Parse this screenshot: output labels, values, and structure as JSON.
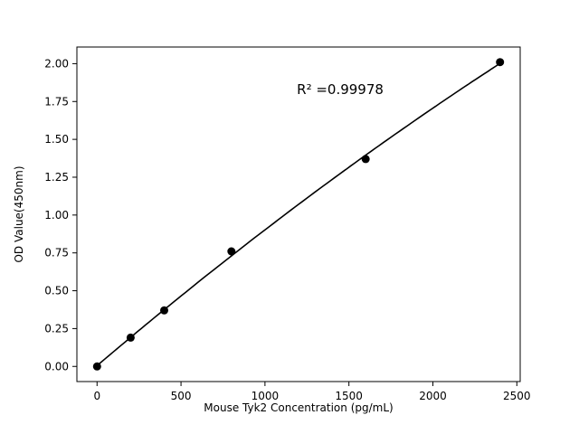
{
  "figure": {
    "background": "#ffffff"
  },
  "chart_data": {
    "type": "scatter",
    "x": [
      0,
      200,
      400,
      800,
      1600,
      2400
    ],
    "y": [
      0.0,
      0.19,
      0.37,
      0.76,
      1.37,
      2.01
    ],
    "fit": "quadratic",
    "title": "",
    "xlabel": "Mouse Tyk2 Concentration (pg/mL)",
    "ylabel": "OD Value(450nm)",
    "xlim": [
      -120,
      2520
    ],
    "ylim": [
      -0.1,
      2.11
    ],
    "xticks": [
      0,
      500,
      1000,
      1500,
      2000,
      2500
    ],
    "yticks": [
      0.0,
      0.25,
      0.5,
      0.75,
      1.0,
      1.25,
      1.5,
      1.75,
      2.0
    ],
    "annotation": "R² =0.99978",
    "annotation_pos": {
      "x": 1190,
      "y": 1.82
    },
    "marker_color": "#000000",
    "line_color": "#000000",
    "axis_color": "#000000",
    "grid": false,
    "legend": "none"
  }
}
